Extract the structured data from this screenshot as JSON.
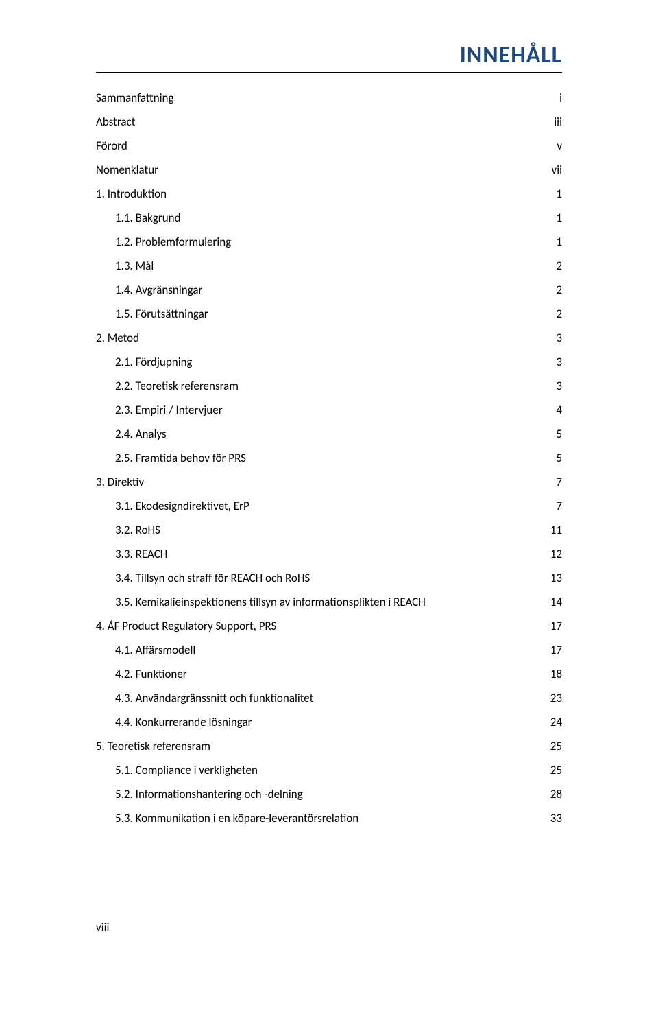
{
  "heading": "INNEHÅLL",
  "heading_color": "#1f497d",
  "heading_fontsize": 34,
  "text_color": "#000000",
  "body_fontsize": 17,
  "footer": "viii",
  "toc": [
    {
      "label": "Sammanfattning",
      "page": "i",
      "level": 0
    },
    {
      "label": "Abstract",
      "page": "iii",
      "level": 0
    },
    {
      "label": "Förord",
      "page": "v",
      "level": 0
    },
    {
      "label": "Nomenklatur",
      "page": "vii",
      "level": 0
    },
    {
      "label": "1. Introduktion",
      "page": "1",
      "level": 0
    },
    {
      "label": "1.1. Bakgrund",
      "page": "1",
      "level": 1
    },
    {
      "label": "1.2. Problemformulering",
      "page": "1",
      "level": 1
    },
    {
      "label": "1.3. Mål",
      "page": "2",
      "level": 1
    },
    {
      "label": "1.4. Avgränsningar",
      "page": "2",
      "level": 1
    },
    {
      "label": "1.5. Förutsättningar",
      "page": "2",
      "level": 1
    },
    {
      "label": "2. Metod",
      "page": "3",
      "level": 0
    },
    {
      "label": "2.1. Fördjupning",
      "page": "3",
      "level": 1
    },
    {
      "label": "2.2. Teoretisk referensram",
      "page": "3",
      "level": 1
    },
    {
      "label": "2.3. Empiri / Intervjuer",
      "page": "4",
      "level": 1
    },
    {
      "label": "2.4. Analys",
      "page": "5",
      "level": 1
    },
    {
      "label": "2.5. Framtida behov för PRS",
      "page": "5",
      "level": 1
    },
    {
      "label": "3. Direktiv",
      "page": "7",
      "level": 0
    },
    {
      "label": "3.1. Ekodesigndirektivet, ErP",
      "page": "7",
      "level": 1
    },
    {
      "label": "3.2. RoHS",
      "page": "11",
      "level": 1
    },
    {
      "label": "3.3. REACH",
      "page": "12",
      "level": 1
    },
    {
      "label": "3.4. Tillsyn och straff för REACH och RoHS",
      "page": "13",
      "level": 1
    },
    {
      "label": "3.5. Kemikalieinspektionens tillsyn av informationsplikten i REACH",
      "page": "14",
      "level": 1
    },
    {
      "label": "4. ÅF Product Regulatory Support, PRS",
      "page": "17",
      "level": 0
    },
    {
      "label": "4.1. Affärsmodell",
      "page": "17",
      "level": 1
    },
    {
      "label": "4.2. Funktioner",
      "page": "18",
      "level": 1
    },
    {
      "label": "4.3. Användargränssnitt och funktionalitet",
      "page": "23",
      "level": 1
    },
    {
      "label": "4.4. Konkurrerande lösningar",
      "page": "24",
      "level": 1
    },
    {
      "label": "5. Teoretisk referensram",
      "page": "25",
      "level": 0
    },
    {
      "label": "5.1. Compliance i verkligheten",
      "page": "25",
      "level": 1
    },
    {
      "label": "5.2. Informationshantering och -delning",
      "page": "28",
      "level": 1
    },
    {
      "label": "5.3. Kommunikation i en köpare-leverantörsrelation",
      "page": "33",
      "level": 1
    }
  ]
}
